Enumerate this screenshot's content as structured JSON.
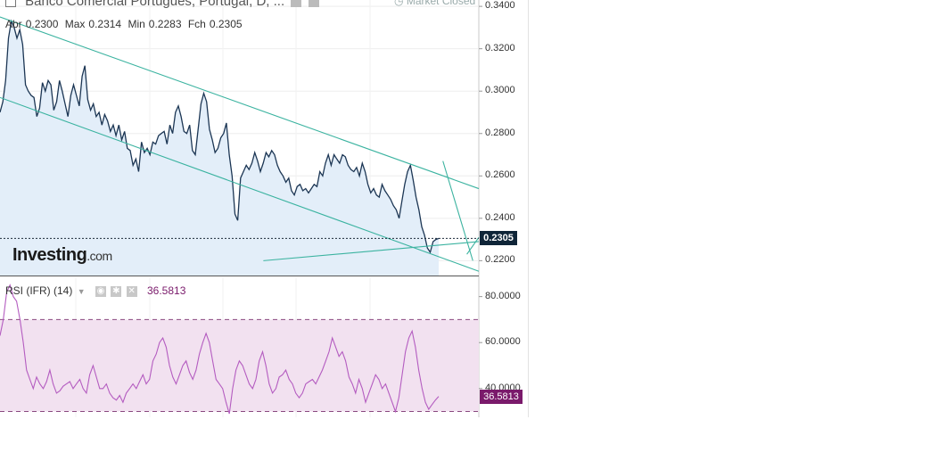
{
  "header": {
    "title": "Banco Comercial Portugues, Portugal, D, ...",
    "market_status": "Market Closed"
  },
  "ohlc": {
    "open_label": "Abr",
    "open": "0.2300",
    "max_label": "Max",
    "max": "0.2314",
    "min_label": "Min",
    "min": "0.2283",
    "close_label": "Fch",
    "close": "0.2305"
  },
  "logo": {
    "main": "Investing",
    "suffix": ".com"
  },
  "rsi": {
    "label": "RSI (IFR) (14)",
    "value": "36.5813"
  },
  "colors": {
    "price_line": "#1c3654",
    "price_fill": "#e3eef9",
    "trendline": "#3bb3a0",
    "rsi_line": "#b45cc0",
    "rsi_band": "#f2e1f0",
    "rsi_tag": "#7a1a6b",
    "price_tag": "#0f2538"
  },
  "chart_data": [
    {
      "type": "line",
      "series": [
        {
          "values": [
            0.29,
            0.295,
            0.305,
            0.325,
            0.333,
            0.33,
            0.325,
            0.329,
            0.322,
            0.303,
            0.3,
            0.298,
            0.297,
            0.288,
            0.292,
            0.304,
            0.3,
            0.305,
            0.303,
            0.291,
            0.295,
            0.305,
            0.3,
            0.294,
            0.288,
            0.298,
            0.303,
            0.298,
            0.293,
            0.307,
            0.312,
            0.296,
            0.291,
            0.294,
            0.288,
            0.29,
            0.284,
            0.289,
            0.286,
            0.281,
            0.284,
            0.279,
            0.284,
            0.277,
            0.281,
            0.273,
            0.272,
            0.265,
            0.268,
            0.262,
            0.276,
            0.271,
            0.273,
            0.27,
            0.276,
            0.275,
            0.279,
            0.28,
            0.281,
            0.275,
            0.284,
            0.28,
            0.29,
            0.293,
            0.288,
            0.281,
            0.28,
            0.284,
            0.272,
            0.27,
            0.282,
            0.294,
            0.299,
            0.295,
            0.282,
            0.277,
            0.271,
            0.273,
            0.278,
            0.28,
            0.285,
            0.27,
            0.26,
            0.242,
            0.239,
            0.259,
            0.262,
            0.265,
            0.263,
            0.266,
            0.271,
            0.267,
            0.262,
            0.266,
            0.271,
            0.269,
            0.272,
            0.27,
            0.265,
            0.262,
            0.26,
            0.257,
            0.259,
            0.253,
            0.251,
            0.255,
            0.256,
            0.253,
            0.254,
            0.252,
            0.254,
            0.256,
            0.255,
            0.262,
            0.26,
            0.266,
            0.27,
            0.265,
            0.27,
            0.268,
            0.266,
            0.27,
            0.269,
            0.265,
            0.263,
            0.262,
            0.264,
            0.26,
            0.266,
            0.262,
            0.256,
            0.252,
            0.254,
            0.251,
            0.25,
            0.256,
            0.253,
            0.251,
            0.249,
            0.246,
            0.244,
            0.24,
            0.248,
            0.256,
            0.262,
            0.265,
            0.258,
            0.25,
            0.244,
            0.236,
            0.232,
            0.226,
            0.224,
            0.229,
            0.23,
            0.2305
          ],
          "mode": "area"
        }
      ],
      "xlim": [
        0,
        160
      ],
      "ylim": [
        0.213,
        0.343
      ],
      "yticks": [
        "0.3400",
        "0.3200",
        "0.3000",
        "0.2800",
        "0.2600",
        "0.2400",
        "0.2200"
      ],
      "ytick_values": [
        0.34,
        0.32,
        0.3,
        0.28,
        0.26,
        0.24,
        0.22
      ],
      "last_value": "0.2305",
      "trendlines": [
        {
          "from": [
            0,
            0.335
          ],
          "to": [
            160,
            0.254
          ]
        },
        {
          "from": [
            0,
            0.297
          ],
          "to": [
            160,
            0.215
          ]
        },
        {
          "from": [
            88,
            0.22
          ],
          "to": [
            160,
            0.229
          ]
        },
        {
          "from": [
            148,
            0.267
          ],
          "to": [
            158,
            0.22
          ]
        },
        {
          "from": [
            156,
            0.223
          ],
          "to": [
            160,
            0.231
          ]
        }
      ]
    },
    {
      "type": "line",
      "series": [
        {
          "name": "RSI (IFR) (14)",
          "values": [
            63,
            70,
            82,
            85,
            80,
            78,
            70,
            60,
            48,
            44,
            40,
            45,
            42,
            40,
            43,
            48,
            42,
            38,
            39,
            41,
            42,
            43,
            40,
            42,
            44,
            40,
            38,
            46,
            50,
            45,
            40,
            40,
            42,
            38,
            36,
            35,
            37,
            34,
            38,
            40,
            42,
            40,
            43,
            46,
            42,
            44,
            52,
            55,
            60,
            62,
            58,
            50,
            45,
            42,
            46,
            50,
            52,
            47,
            44,
            48,
            55,
            60,
            64,
            60,
            52,
            44,
            42,
            40,
            34,
            29,
            40,
            48,
            52,
            50,
            46,
            42,
            40,
            44,
            52,
            56,
            50,
            42,
            38,
            40,
            45,
            46,
            48,
            44,
            42,
            38,
            36,
            38,
            42,
            43,
            44,
            42,
            45,
            48,
            52,
            56,
            62,
            58,
            54,
            56,
            52,
            45,
            42,
            38,
            44,
            40,
            34,
            38,
            42,
            46,
            44,
            40,
            42,
            38,
            34,
            30,
            36,
            46,
            56,
            62,
            65,
            58,
            48,
            40,
            34,
            31,
            33,
            35,
            36.5813
          ],
          "mode": "line"
        }
      ],
      "xlim": [
        0,
        160
      ],
      "ylim": [
        27.5,
        88.0
      ],
      "yticks": [
        "80.0000",
        "60.0000",
        "40.0000"
      ],
      "ytick_values": [
        80,
        60,
        40
      ],
      "bands": [
        30,
        70
      ],
      "last_value": "36.5813"
    }
  ]
}
